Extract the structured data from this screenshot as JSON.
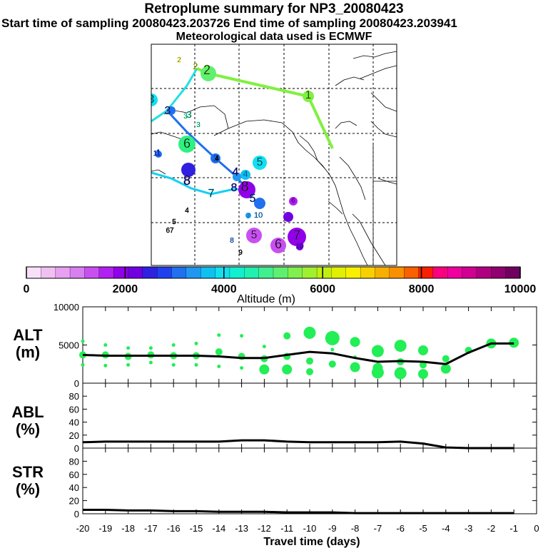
{
  "header": {
    "title": "Retroplume summary for NP3_20080423",
    "sampling": "Start time of sampling 20080423.203726     End time of sampling 20080423.203941",
    "met": "Meteorological data used is ECMWF"
  },
  "colors": {
    "scale": [
      "#f8e0f8",
      "#f0c0f0",
      "#e8a0f0",
      "#d880f0",
      "#c850f0",
      "#b020f0",
      "#9000e8",
      "#7000e0",
      "#3020e0",
      "#2040f0",
      "#2070f0",
      "#2098f0",
      "#10c0f0",
      "#10e0f0",
      "#10f0d0",
      "#20f0b0",
      "#40f090",
      "#60f070",
      "#80f050",
      "#a0f030",
      "#c0f010",
      "#e0f000",
      "#f8f000",
      "#f8d000",
      "#f8b000",
      "#f89000",
      "#f86000",
      "#f82000",
      "#f80080",
      "#f000a0",
      "#d00090",
      "#b00080",
      "#900070",
      "#700060"
    ],
    "scatter": "#22ee55",
    "line": "#000000"
  },
  "colorbar": {
    "ticks": [
      "0",
      "2000",
      "4000",
      "6000",
      "8000",
      "10000"
    ],
    "label": "Altitude (m)"
  },
  "map": {
    "labels": [
      {
        "t": "2",
        "c": "#e8e800"
      },
      {
        "t": "2",
        "c": "#c8f000"
      },
      {
        "t": "2",
        "c": "#80f040"
      },
      {
        "t": "1",
        "c": "#80f040"
      },
      {
        "t": "3",
        "c": "#20f0b0"
      },
      {
        "t": "3",
        "c": "#2070f0"
      },
      {
        "t": "3",
        "c": "#20f0b0"
      },
      {
        "t": "3",
        "c": "#20f0b0"
      },
      {
        "t": "6",
        "c": "#30f080"
      },
      {
        "t": "1",
        "c": "#2040f0"
      },
      {
        "t": "3",
        "c": "#2070f0"
      },
      {
        "t": "8",
        "c": "#3020e0"
      },
      {
        "t": "4",
        "c": "#3020e0"
      },
      {
        "t": "4",
        "c": "#10c0f0"
      },
      {
        "t": "5",
        "c": "#10e0f0"
      },
      {
        "t": "6",
        "c": "#9000e8"
      },
      {
        "t": "5",
        "c": "#2070f0"
      },
      {
        "t": "7",
        "c": "#10c0f0"
      },
      {
        "t": "8",
        "c": "#b020f0"
      },
      {
        "t": "8",
        "c": "#3020e0"
      },
      {
        "t": "10",
        "c": "#2098f0"
      },
      {
        "t": "7",
        "c": "#10c0f0"
      },
      {
        "t": "4",
        "c": "#000000"
      },
      {
        "t": "5",
        "c": "#000000"
      },
      {
        "t": "67",
        "c": "#000000"
      },
      {
        "t": "5",
        "c": "#c850f0"
      },
      {
        "t": "7",
        "c": "#b020f0"
      },
      {
        "t": "6",
        "c": "#c850f0"
      },
      {
        "t": "8",
        "c": "#2070f0"
      },
      {
        "t": "9",
        "c": "#000000"
      },
      {
        "t": "10",
        "c": "#7000e0"
      },
      {
        "t": "11",
        "c": "#2040f0"
      },
      {
        "t": "3",
        "c": "#10e0f0"
      },
      {
        "t": "4",
        "c": "#000000"
      }
    ]
  },
  "chart_data": {
    "type": "line",
    "x": [
      -20,
      -19,
      -18,
      -17,
      -16,
      -15,
      -14,
      -13,
      -12,
      -11,
      -10,
      -9,
      -8,
      -7,
      -6,
      -5,
      -4,
      -3,
      -2,
      -1
    ],
    "xlabel": "Travel time (days)",
    "xticks": [
      "-20",
      "-19",
      "-18",
      "-17",
      "-16",
      "-15",
      "-14",
      "-13",
      "-12",
      "-11",
      "-10",
      "-9",
      "-8",
      "-7",
      "-6",
      "-5",
      "-4",
      "-3",
      "-2",
      "-1",
      "0"
    ],
    "xlim": [
      -20,
      0
    ],
    "panels": [
      {
        "name": "ALT",
        "ylabel": "ALT\n(m)",
        "ylim": [
          0,
          10000
        ],
        "yticks": [
          "0",
          "5000",
          "10000"
        ],
        "line": [
          3700,
          3600,
          3600,
          3600,
          3600,
          3600,
          3500,
          3300,
          3300,
          3700,
          4100,
          3900,
          3300,
          2800,
          2900,
          2800,
          2500,
          4000,
          5200,
          5200
        ],
        "clusters": [
          [
            {
              "y": 5500,
              "s": 1
            },
            {
              "y": 3700,
              "s": 2
            },
            {
              "y": 2400,
              "s": 1
            }
          ],
          [
            {
              "y": 5000,
              "s": 1
            },
            {
              "y": 3700,
              "s": 2
            },
            {
              "y": 2300,
              "s": 1
            }
          ],
          [
            {
              "y": 4600,
              "s": 1
            },
            {
              "y": 3500,
              "s": 2
            },
            {
              "y": 2400,
              "s": 1
            }
          ],
          [
            {
              "y": 4600,
              "s": 1
            },
            {
              "y": 3700,
              "s": 2
            },
            {
              "y": 2700,
              "s": 1
            }
          ],
          [
            {
              "y": 5000,
              "s": 1
            },
            {
              "y": 3600,
              "s": 2
            },
            {
              "y": 2400,
              "s": 1
            }
          ],
          [
            {
              "y": 5200,
              "s": 1
            },
            {
              "y": 3600,
              "s": 2
            },
            {
              "y": 2400,
              "s": 1
            }
          ],
          [
            {
              "y": 6300,
              "s": 1
            },
            {
              "y": 4100,
              "s": 2
            },
            {
              "y": 2200,
              "s": 1
            }
          ],
          [
            {
              "y": 6200,
              "s": 1
            },
            {
              "y": 3500,
              "s": 2
            },
            {
              "y": 2000,
              "s": 1
            }
          ],
          [
            {
              "y": 4800,
              "s": 1
            },
            {
              "y": 3200,
              "s": 2
            },
            {
              "y": 1800,
              "s": 3
            }
          ],
          [
            {
              "y": 6200,
              "s": 2
            },
            {
              "y": 3500,
              "s": 2
            },
            {
              "y": 1800,
              "s": 3
            }
          ],
          [
            {
              "y": 6600,
              "s": 4
            },
            {
              "y": 2900,
              "s": 2
            },
            {
              "y": 1500,
              "s": 2
            }
          ],
          [
            {
              "y": 5900,
              "s": 5
            },
            {
              "y": 4400,
              "s": 1
            },
            {
              "y": 2500,
              "s": 2
            }
          ],
          [
            {
              "y": 5400,
              "s": 3
            },
            {
              "y": 3400,
              "s": 1
            },
            {
              "y": 2100,
              "s": 3
            }
          ],
          [
            {
              "y": 4200,
              "s": 4
            },
            {
              "y": 2000,
              "s": 3
            },
            {
              "y": 1400,
              "s": 4
            }
          ],
          [
            {
              "y": 4900,
              "s": 4
            },
            {
              "y": 2800,
              "s": 2
            },
            {
              "y": 1300,
              "s": 4
            }
          ],
          [
            {
              "y": 4300,
              "s": 3
            },
            {
              "y": 2400,
              "s": 2
            },
            {
              "y": 1200,
              "s": 3
            }
          ],
          [
            {
              "y": 3200,
              "s": 2
            },
            {
              "y": 1900,
              "s": 3
            }
          ],
          [
            {
              "y": 4300,
              "s": 2
            }
          ],
          [
            {
              "y": 5200,
              "s": 3
            }
          ],
          [
            {
              "y": 5300,
              "s": 3
            }
          ]
        ]
      },
      {
        "name": "ABL",
        "ylabel": "ABL\n(%)",
        "ylim": [
          0,
          100
        ],
        "yticks": [
          "0",
          "20",
          "40",
          "60",
          "80"
        ],
        "line": [
          9,
          10,
          10,
          10,
          10,
          10,
          10,
          12,
          12,
          10,
          9,
          9,
          9,
          9,
          10,
          7,
          1,
          0,
          0,
          0
        ]
      },
      {
        "name": "STR",
        "ylabel": "STR\n(%)",
        "ylim": [
          0,
          100
        ],
        "yticks": [
          "0",
          "20",
          "40",
          "60",
          "80"
        ],
        "line": [
          6,
          6,
          5,
          5,
          4,
          4,
          3,
          3,
          3,
          2,
          2,
          2,
          1,
          1,
          1,
          1,
          1,
          1,
          1,
          1
        ]
      }
    ]
  }
}
